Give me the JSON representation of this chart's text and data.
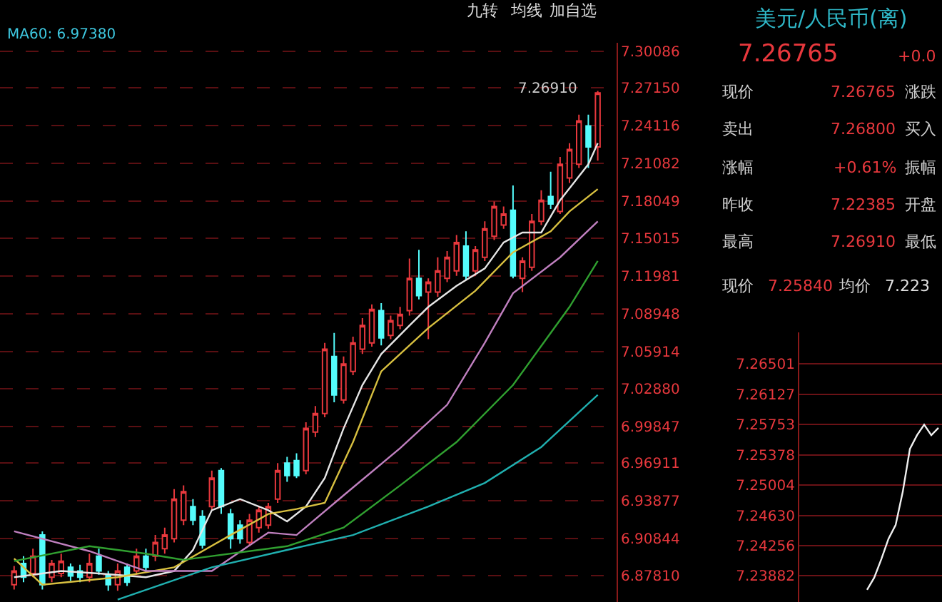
{
  "chart_data": [
    {
      "type": "candlestick",
      "categories": [
        null,
        null,
        null,
        null,
        null,
        null,
        null,
        null,
        null,
        null,
        null,
        null,
        null,
        null,
        null,
        null,
        null,
        null,
        null,
        null,
        null,
        null,
        null,
        null,
        null,
        null,
        null,
        null,
        null,
        null,
        null,
        null,
        null,
        null,
        null,
        null,
        null,
        null,
        null,
        null,
        null,
        null,
        null,
        null,
        null,
        null,
        null,
        null,
        null,
        null,
        null,
        null,
        null,
        null,
        null,
        null,
        null,
        null,
        null,
        null,
        null,
        null,
        null
      ],
      "ohlc": [
        [
          6.871,
          6.886,
          6.867,
          6.882
        ],
        [
          6.888,
          6.894,
          6.873,
          6.877
        ],
        [
          6.88,
          6.9,
          6.877,
          6.894
        ],
        [
          6.911,
          6.914,
          6.867,
          6.871
        ],
        [
          6.877,
          6.891,
          6.873,
          6.888
        ],
        [
          6.88,
          6.896,
          6.877,
          6.89
        ],
        [
          6.885,
          6.888,
          6.874,
          6.878
        ],
        [
          6.882,
          6.887,
          6.873,
          6.877
        ],
        [
          6.877,
          6.896,
          6.873,
          6.888
        ],
        [
          6.894,
          6.9,
          6.879,
          6.882
        ],
        [
          6.879,
          6.882,
          6.866,
          6.871
        ],
        [
          6.871,
          6.888,
          6.866,
          6.882
        ],
        [
          6.885,
          6.888,
          6.87,
          6.873
        ],
        [
          6.882,
          6.9,
          6.879,
          6.894
        ],
        [
          6.894,
          6.9,
          6.881,
          6.885
        ],
        [
          6.894,
          6.911,
          6.89,
          6.905
        ],
        [
          6.9,
          6.917,
          6.896,
          6.911
        ],
        [
          6.908,
          6.948,
          6.905,
          6.94
        ],
        [
          6.923,
          6.951,
          6.919,
          6.946
        ],
        [
          6.934,
          6.94,
          6.919,
          6.923
        ],
        [
          6.926,
          6.931,
          6.9,
          6.903
        ],
        [
          6.934,
          6.963,
          6.931,
          6.957
        ],
        [
          6.963,
          6.965,
          6.928,
          6.934
        ],
        [
          6.928,
          6.932,
          6.9,
          6.908
        ],
        [
          6.919,
          6.923,
          6.904,
          6.908
        ],
        [
          6.905,
          6.928,
          6.902,
          6.923
        ],
        [
          6.917,
          6.934,
          6.913,
          6.931
        ],
        [
          6.919,
          6.937,
          6.916,
          6.934
        ],
        [
          6.94,
          6.969,
          6.937,
          6.963
        ],
        [
          6.969,
          6.974,
          6.954,
          6.959
        ],
        [
          6.971,
          6.977,
          6.957,
          6.959
        ],
        [
          6.963,
          7.002,
          6.96,
          6.997
        ],
        [
          6.994,
          7.015,
          6.99,
          7.009
        ],
        [
          7.009,
          7.066,
          7.006,
          7.061
        ],
        [
          7.055,
          7.074,
          7.018,
          7.024
        ],
        [
          7.02,
          7.055,
          7.017,
          7.049
        ],
        [
          7.043,
          7.071,
          7.04,
          7.066
        ],
        [
          7.061,
          7.086,
          7.057,
          7.08
        ],
        [
          7.066,
          7.097,
          7.063,
          7.093
        ],
        [
          7.092,
          7.098,
          7.064,
          7.07
        ],
        [
          7.072,
          7.088,
          7.069,
          7.084
        ],
        [
          7.08,
          7.095,
          7.077,
          7.089
        ],
        [
          7.092,
          7.134,
          7.088,
          7.118
        ],
        [
          7.118,
          7.141,
          7.101,
          7.104
        ],
        [
          7.107,
          7.118,
          7.069,
          7.115
        ],
        [
          7.107,
          7.135,
          7.103,
          7.124
        ],
        [
          7.118,
          7.14,
          7.115,
          7.135
        ],
        [
          7.124,
          7.153,
          7.12,
          7.147
        ],
        [
          7.144,
          7.156,
          7.117,
          7.12
        ],
        [
          7.124,
          7.144,
          7.12,
          7.141
        ],
        [
          7.135,
          7.164,
          7.132,
          7.158
        ],
        [
          7.152,
          7.18,
          7.149,
          7.176
        ],
        [
          7.161,
          7.176,
          7.158,
          7.17
        ],
        [
          7.173,
          7.193,
          7.118,
          7.12
        ],
        [
          7.118,
          7.135,
          7.107,
          7.132
        ],
        [
          7.127,
          7.17,
          7.124,
          7.164
        ],
        [
          7.164,
          7.189,
          7.161,
          7.181
        ],
        [
          7.184,
          7.204,
          7.174,
          7.178
        ],
        [
          7.172,
          7.216,
          7.17,
          7.21
        ],
        [
          7.199,
          7.227,
          7.195,
          7.222
        ],
        [
          7.21,
          7.25,
          7.207,
          7.245
        ],
        [
          7.241,
          7.25,
          7.207,
          7.224
        ],
        [
          7.224,
          7.2691,
          7.213,
          7.26765
        ]
      ],
      "series": [
        {
          "type": "line",
          "color": "#e6e6e6",
          "values": [
            6.877,
            null,
            null,
            null,
            null,
            6.882,
            null,
            null,
            null,
            6.88,
            null,
            null,
            null,
            null,
            6.877,
            null,
            null,
            6.882,
            null,
            6.899,
            null,
            6.931,
            null,
            null,
            6.94,
            null,
            null,
            6.931,
            null,
            6.922,
            null,
            6.934,
            null,
            6.957,
            null,
            6.997,
            null,
            7.032,
            null,
            7.057,
            null,
            null,
            7.08,
            null,
            7.095,
            null,
            null,
            7.112,
            null,
            null,
            7.126,
            null,
            7.147,
            null,
            7.155,
            null,
            7.155,
            null,
            7.181,
            null,
            null,
            7.21,
            7.227
          ]
        },
        {
          "type": "line",
          "color": "#d8c040",
          "values": [
            6.892,
            null,
            null,
            6.871,
            null,
            null,
            null,
            null,
            null,
            null,
            null,
            6.877,
            null,
            null,
            null,
            null,
            null,
            6.885,
            null,
            null,
            null,
            null,
            null,
            6.911,
            null,
            null,
            null,
            6.928,
            null,
            null,
            6.932,
            null,
            null,
            6.937,
            null,
            null,
            6.986,
            null,
            null,
            7.043,
            null,
            null,
            null,
            null,
            7.078,
            null,
            null,
            null,
            null,
            7.108,
            null,
            null,
            null,
            7.139,
            null,
            null,
            null,
            7.156,
            null,
            7.172,
            null,
            null,
            7.19
          ]
        },
        {
          "type": "line",
          "color": "#c080c0",
          "values": [
            6.914,
            null,
            null,
            null,
            null,
            null,
            null,
            null,
            6.898,
            null,
            null,
            null,
            null,
            null,
            6.882,
            null,
            null,
            null,
            null,
            null,
            null,
            6.882,
            null,
            null,
            null,
            null,
            null,
            6.913,
            null,
            null,
            6.911,
            null,
            null,
            null,
            null,
            6.943,
            null,
            null,
            null,
            null,
            null,
            6.981,
            null,
            null,
            null,
            null,
            7.016,
            null,
            null,
            null,
            7.066,
            null,
            null,
            7.106,
            null,
            null,
            null,
            null,
            7.135,
            null,
            null,
            null,
            7.164
          ]
        },
        {
          "type": "line",
          "color": "#30a030",
          "values": [
            6.89,
            null,
            null,
            null,
            null,
            null,
            null,
            null,
            6.902,
            null,
            null,
            null,
            null,
            null,
            6.896,
            null,
            null,
            null,
            6.891,
            null,
            null,
            null,
            null,
            null,
            null,
            null,
            null,
            null,
            null,
            6.902,
            null,
            null,
            null,
            null,
            null,
            6.917,
            null,
            null,
            null,
            null,
            null,
            6.951,
            null,
            null,
            null,
            null,
            null,
            6.986,
            null,
            null,
            null,
            null,
            null,
            7.032,
            null,
            null,
            null,
            null,
            null,
            7.095,
            null,
            null,
            7.132
          ]
        },
        {
          "type": "line",
          "color": "#20b0b0",
          "values": [
            null,
            null,
            null,
            null,
            null,
            null,
            null,
            null,
            null,
            null,
            null,
            6.859,
            null,
            null,
            null,
            null,
            null,
            null,
            null,
            null,
            null,
            6.885,
            null,
            null,
            null,
            null,
            null,
            null,
            null,
            6.899,
            null,
            null,
            null,
            null,
            null,
            null,
            6.911,
            null,
            null,
            null,
            null,
            null,
            null,
            null,
            6.934,
            null,
            null,
            null,
            null,
            null,
            6.953,
            null,
            null,
            null,
            null,
            null,
            6.982,
            null,
            null,
            null,
            null,
            null,
            7.024
          ]
        }
      ],
      "ylim": [
        6.857,
        7.308
      ],
      "yticks": [
        7.30086,
        {
          "value": 7.2715,
          "label": "7.27150"
        },
        7.24116,
        7.21082,
        7.18049,
        7.15015,
        7.11981,
        7.08948,
        7.05914,
        {
          "value": 7.0288,
          "label": "7.02880"
        },
        6.99847,
        6.96911,
        6.93877,
        6.90844,
        {
          "value": 6.8781,
          "label": "6.87810"
        }
      ],
      "grid": "y",
      "tick_labels": "y",
      "annotations": [
        "MA60: 6.97380",
        "九转",
        "均线",
        "加自选",
        "7.26910"
      ]
    },
    {
      "type": "other",
      "title": "美元/人民币(离)",
      "annotations": [
        "7.26765",
        "+0.0",
        "现价",
        "7.26765",
        "涨跌",
        "卖出",
        "7.26800",
        "买入",
        "涨幅",
        "+0.61%",
        "振幅",
        "昨收",
        "7.22385",
        "开盘",
        "最高",
        "7.26910",
        "最低"
      ]
    },
    {
      "type": "line",
      "categories": [
        null,
        null,
        null,
        null,
        null,
        null,
        null,
        null,
        null,
        null,
        null,
        null,
        null,
        null,
        null,
        null,
        null,
        null,
        null,
        null
      ],
      "series": [
        {
          "color": "#f0f0f0",
          "values": [
            null,
            null,
            null,
            null,
            null,
            null,
            null,
            null,
            null,
            7.2371,
            7.2386,
            7.2409,
            7.2434,
            7.2451,
            7.2492,
            7.2545,
            7.2562,
            7.2575,
            7.2562,
            7.2571
          ]
        }
      ],
      "ylim": [
        7.2356,
        7.2689
      ],
      "yticks": [
        7.26501,
        7.26127,
        7.25753,
        7.25378,
        7.25004,
        {
          "value": 7.2463,
          "label": "7.24630"
        },
        7.24256,
        7.23882
      ],
      "grid": "y",
      "tick_labels": "y",
      "annotations": [
        "现价",
        "7.25840",
        "均价",
        "7.223"
      ]
    }
  ]
}
